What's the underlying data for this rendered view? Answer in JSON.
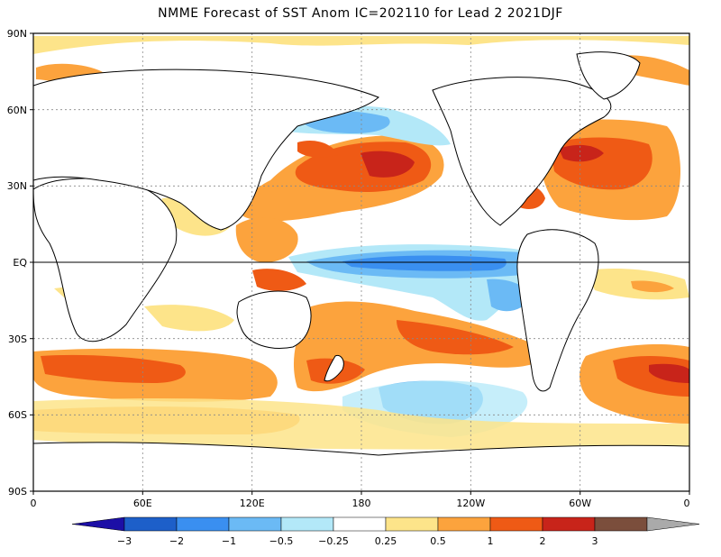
{
  "title": "NMME Forecast of SST Anom IC=202110 for Lead 2 2021DJF",
  "map": {
    "lat_ticks": [
      "90N",
      "60N",
      "30N",
      "EQ",
      "30S",
      "60S",
      "90S"
    ],
    "lon_ticks": [
      "0",
      "60E",
      "120E",
      "180",
      "120W",
      "60W",
      "0"
    ],
    "equator_line": true,
    "grid": "dotted",
    "projection": "cylindrical equidistant",
    "lon_range": [
      0,
      360
    ],
    "lat_range": [
      -90,
      90
    ]
  },
  "colorbar": {
    "labels": [
      "-3",
      "-2",
      "-1",
      "-0.5",
      "-0.25",
      "0.25",
      "0.5",
      "1",
      "2",
      "3"
    ],
    "colors": {
      "below": "#1c0fa6",
      "bins": [
        "#1d5fc9",
        "#3a8ff0",
        "#6bbaf5",
        "#b3e8f8",
        "#ffffff",
        "#fde48a",
        "#fca33d",
        "#ef5a15",
        "#c8241a",
        "#7b4e3c"
      ],
      "above": "#aaaaaa"
    }
  }
}
